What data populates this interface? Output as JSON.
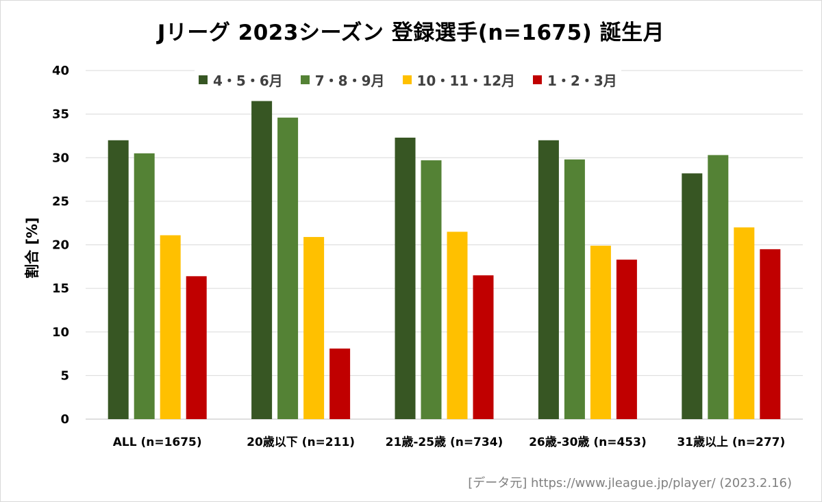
{
  "chart_data": {
    "type": "bar",
    "title": "Jリーグ 2023シーズン 登録選手(n=1675) 誕生月",
    "ylabel": "割合 [%]",
    "xlabel": "",
    "ylim": [
      0,
      40
    ],
    "yticks": [
      0,
      5,
      10,
      15,
      20,
      25,
      30,
      35,
      40
    ],
    "grid": true,
    "legend_position": "top",
    "categories": [
      "ALL (n=1675)",
      "20歳以下 (n=211)",
      "21歳-25歳 (n=734)",
      "26歳-30歳 (n=453)",
      "31歳以上 (n=277)"
    ],
    "series": [
      {
        "name": "4・5・6月",
        "color": "#375623",
        "values": [
          32.0,
          36.5,
          32.3,
          32.0,
          28.2
        ]
      },
      {
        "name": "7・8・9月",
        "color": "#548235",
        "values": [
          30.5,
          34.6,
          29.7,
          29.8,
          30.3
        ]
      },
      {
        "name": "10・11・12月",
        "color": "#FFC000",
        "values": [
          21.1,
          20.9,
          21.5,
          19.9,
          22.0
        ]
      },
      {
        "name": "1・2・3月",
        "color": "#C00000",
        "values": [
          16.4,
          8.1,
          16.5,
          18.3,
          19.5
        ]
      }
    ],
    "source_note": "[データ元] https://www.jleague.jp/player/ (2023.2.16)"
  }
}
